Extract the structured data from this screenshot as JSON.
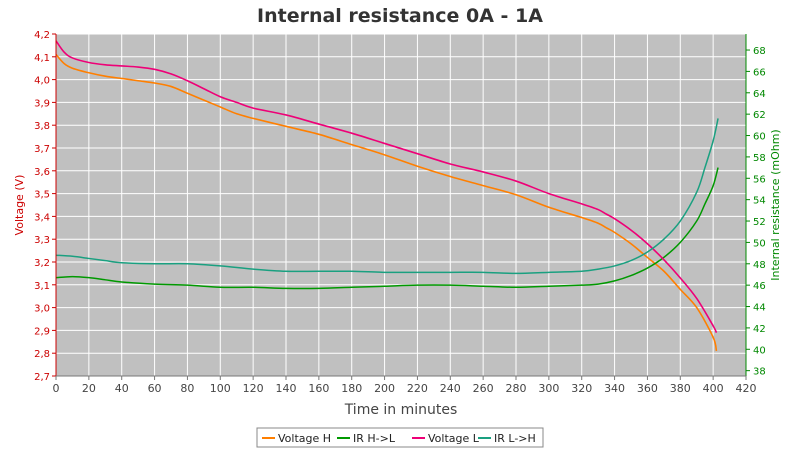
{
  "chart_data": {
    "type": "line",
    "title": "Internal resistance  0A - 1A",
    "xlabel": "Time in minutes",
    "ylabel_left": "Voltage (V)",
    "ylabel_right": "Internal resistance (mOhm)",
    "xlim": [
      0,
      420
    ],
    "ylim_left": [
      2.7,
      4.2
    ],
    "ylim_right": [
      37.5,
      69.5
    ],
    "x_ticks": [
      0,
      20,
      40,
      60,
      80,
      100,
      120,
      140,
      160,
      180,
      200,
      220,
      240,
      260,
      280,
      300,
      320,
      340,
      360,
      380,
      400,
      420
    ],
    "y_ticks_left": [
      "2,7",
      "2,8",
      "2,9",
      "3,0",
      "3,1",
      "3,2",
      "3,3",
      "3,4",
      "3,5",
      "3,6",
      "3,7",
      "3,8",
      "3,9",
      "4,0",
      "4,1",
      "4,2"
    ],
    "y_ticks_right": [
      38,
      40,
      42,
      44,
      46,
      48,
      50,
      52,
      54,
      56,
      58,
      60,
      62,
      64,
      66,
      68
    ],
    "grid": true,
    "legend_position": "bottom",
    "series": [
      {
        "name": "Voltage H",
        "axis": "left",
        "color": "#ff7f00",
        "x": [
          0,
          5,
          10,
          20,
          30,
          40,
          50,
          60,
          70,
          80,
          90,
          100,
          110,
          120,
          140,
          160,
          180,
          200,
          220,
          240,
          260,
          280,
          300,
          320,
          330,
          335,
          340,
          350,
          360,
          370,
          380,
          390,
          400,
          402
        ],
        "y": [
          4.11,
          4.07,
          4.05,
          4.03,
          4.015,
          4.005,
          3.995,
          3.985,
          3.97,
          3.94,
          3.91,
          3.88,
          3.85,
          3.83,
          3.795,
          3.76,
          3.715,
          3.67,
          3.62,
          3.575,
          3.535,
          3.495,
          3.44,
          3.395,
          3.37,
          3.35,
          3.33,
          3.28,
          3.22,
          3.16,
          3.08,
          3.0,
          2.87,
          2.81
        ]
      },
      {
        "name": "IR H->L",
        "axis": "right",
        "color": "#009900",
        "x": [
          0,
          10,
          20,
          30,
          40,
          60,
          80,
          100,
          120,
          140,
          160,
          180,
          200,
          220,
          240,
          260,
          280,
          300,
          320,
          330,
          340,
          350,
          360,
          370,
          380,
          390,
          395,
          400,
          403
        ],
        "y": [
          46.7,
          46.8,
          46.7,
          46.5,
          46.3,
          46.1,
          46.0,
          45.8,
          45.8,
          45.7,
          45.7,
          45.8,
          45.9,
          46.0,
          46.0,
          45.9,
          45.8,
          45.9,
          46.0,
          46.1,
          46.4,
          46.9,
          47.6,
          48.6,
          50.0,
          52.0,
          53.6,
          55.3,
          57.0
        ]
      },
      {
        "name": "Voltage L",
        "axis": "left",
        "color": "#ee0077",
        "x": [
          0,
          5,
          10,
          20,
          30,
          40,
          50,
          60,
          70,
          80,
          90,
          100,
          110,
          120,
          140,
          160,
          180,
          200,
          220,
          240,
          260,
          280,
          300,
          320,
          330,
          335,
          340,
          350,
          360,
          370,
          380,
          390,
          400,
          402
        ],
        "y": [
          4.17,
          4.12,
          4.095,
          4.075,
          4.065,
          4.06,
          4.055,
          4.045,
          4.025,
          3.995,
          3.96,
          3.925,
          3.9,
          3.875,
          3.845,
          3.805,
          3.765,
          3.72,
          3.675,
          3.63,
          3.595,
          3.555,
          3.5,
          3.455,
          3.43,
          3.41,
          3.39,
          3.34,
          3.28,
          3.21,
          3.13,
          3.04,
          2.92,
          2.89
        ]
      },
      {
        "name": "IR L->H",
        "axis": "right",
        "color": "#1aa080",
        "x": [
          0,
          10,
          20,
          30,
          40,
          60,
          80,
          100,
          120,
          140,
          160,
          180,
          200,
          220,
          240,
          260,
          280,
          300,
          320,
          330,
          340,
          350,
          360,
          370,
          380,
          390,
          395,
          400,
          403
        ],
        "y": [
          48.8,
          48.7,
          48.5,
          48.3,
          48.1,
          48.0,
          48.0,
          47.8,
          47.5,
          47.3,
          47.3,
          47.3,
          47.2,
          47.2,
          47.2,
          47.2,
          47.1,
          47.2,
          47.3,
          47.5,
          47.8,
          48.3,
          49.1,
          50.3,
          52.0,
          54.7,
          57.0,
          59.5,
          61.6
        ]
      }
    ]
  }
}
